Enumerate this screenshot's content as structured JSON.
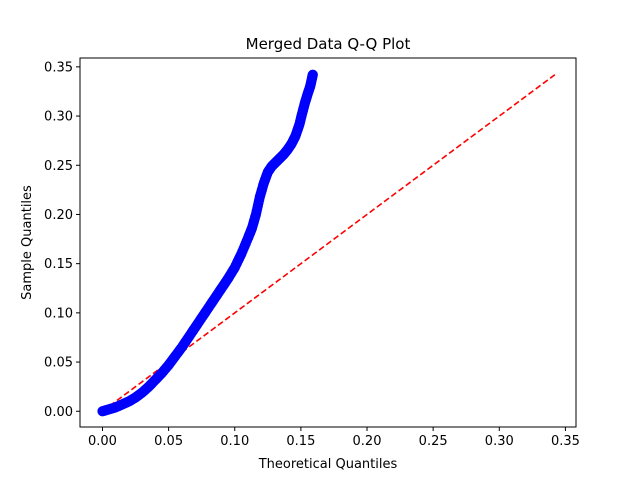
{
  "chart_data": {
    "type": "scatter",
    "title": "Merged Data Q-Q Plot",
    "xlabel": "Theoretical Quantiles",
    "ylabel": "Sample Quantiles",
    "xlim": [
      -0.017,
      0.358
    ],
    "ylim": [
      -0.016,
      0.359
    ],
    "xticks": [
      0.0,
      0.05,
      0.1,
      0.15,
      0.2,
      0.25,
      0.3,
      0.35
    ],
    "yticks": [
      0.0,
      0.05,
      0.1,
      0.15,
      0.2,
      0.25,
      0.3,
      0.35
    ],
    "xtick_labels": [
      "0.00",
      "0.05",
      "0.10",
      "0.15",
      "0.20",
      "0.25",
      "0.30",
      "0.35"
    ],
    "ytick_labels": [
      "0.00",
      "0.05",
      "0.10",
      "0.15",
      "0.20",
      "0.25",
      "0.30",
      "0.35"
    ],
    "grid": false,
    "series": [
      {
        "kind": "points",
        "color": "#0000ff",
        "x": [
          0.0,
          0.005,
          0.01,
          0.015,
          0.02,
          0.025,
          0.03,
          0.035,
          0.04,
          0.045,
          0.05,
          0.055,
          0.06,
          0.065,
          0.07,
          0.075,
          0.08,
          0.085,
          0.09,
          0.095,
          0.1,
          0.105,
          0.11,
          0.113,
          0.116,
          0.119,
          0.122,
          0.125,
          0.128,
          0.131,
          0.134,
          0.137,
          0.14,
          0.143,
          0.146,
          0.149,
          0.151,
          0.153,
          0.155,
          0.157,
          0.158,
          0.159
        ],
        "y": [
          0.0,
          0.002,
          0.004,
          0.007,
          0.01,
          0.014,
          0.019,
          0.025,
          0.032,
          0.039,
          0.047,
          0.056,
          0.065,
          0.075,
          0.085,
          0.095,
          0.105,
          0.115,
          0.125,
          0.135,
          0.146,
          0.16,
          0.176,
          0.186,
          0.2,
          0.218,
          0.232,
          0.243,
          0.249,
          0.253,
          0.257,
          0.261,
          0.266,
          0.272,
          0.28,
          0.292,
          0.303,
          0.313,
          0.322,
          0.33,
          0.336,
          0.342
        ]
      },
      {
        "kind": "reference-line",
        "color": "#ff0000",
        "style": "dashed",
        "x": [
          0.0,
          0.342
        ],
        "y": [
          0.0,
          0.342
        ]
      }
    ]
  }
}
